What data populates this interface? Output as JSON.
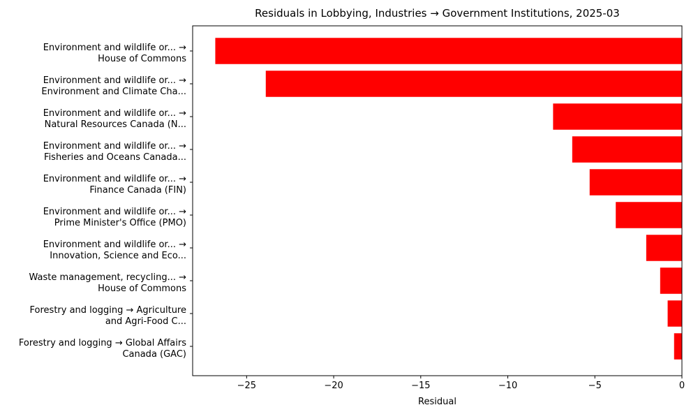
{
  "chart_data": {
    "type": "bar",
    "orientation": "horizontal",
    "title": "Residuals in Lobbying, Industries → Government Institutions, 2025-03",
    "xlabel": "Residual",
    "ylabel": "",
    "xlim": [
      -28.1,
      0
    ],
    "xticks": [
      -25,
      -20,
      -15,
      -10,
      -5,
      0
    ],
    "xtick_labels": [
      "−25",
      "−20",
      "−15",
      "−10",
      "−5",
      "0"
    ],
    "grid": false,
    "bar_color": "#ff0000",
    "categories": [
      [
        "Environment and wildlife or... →",
        "House of Commons"
      ],
      [
        "Environment and wildlife or... →",
        "Environment and Climate Cha..."
      ],
      [
        "Environment and wildlife or... →",
        "Natural Resources Canada (N..."
      ],
      [
        "Environment and wildlife or... →",
        "Fisheries and Oceans Canada..."
      ],
      [
        "Environment and wildlife or... →",
        "Finance Canada (FIN)"
      ],
      [
        "Environment and wildlife or... →",
        "Prime Minister's Office (PMO)"
      ],
      [
        "Environment and wildlife or... →",
        "Innovation, Science and Eco..."
      ],
      [
        "Waste management, recycling... →",
        "House of Commons"
      ],
      [
        "Forestry and logging → Agriculture",
        "and Agri-Food C..."
      ],
      [
        "Forestry and logging → Global Affairs",
        "Canada (GAC)"
      ]
    ],
    "values": [
      -26.8,
      -23.9,
      -7.4,
      -6.3,
      -5.3,
      -3.8,
      -2.05,
      -1.25,
      -0.82,
      -0.45
    ]
  }
}
